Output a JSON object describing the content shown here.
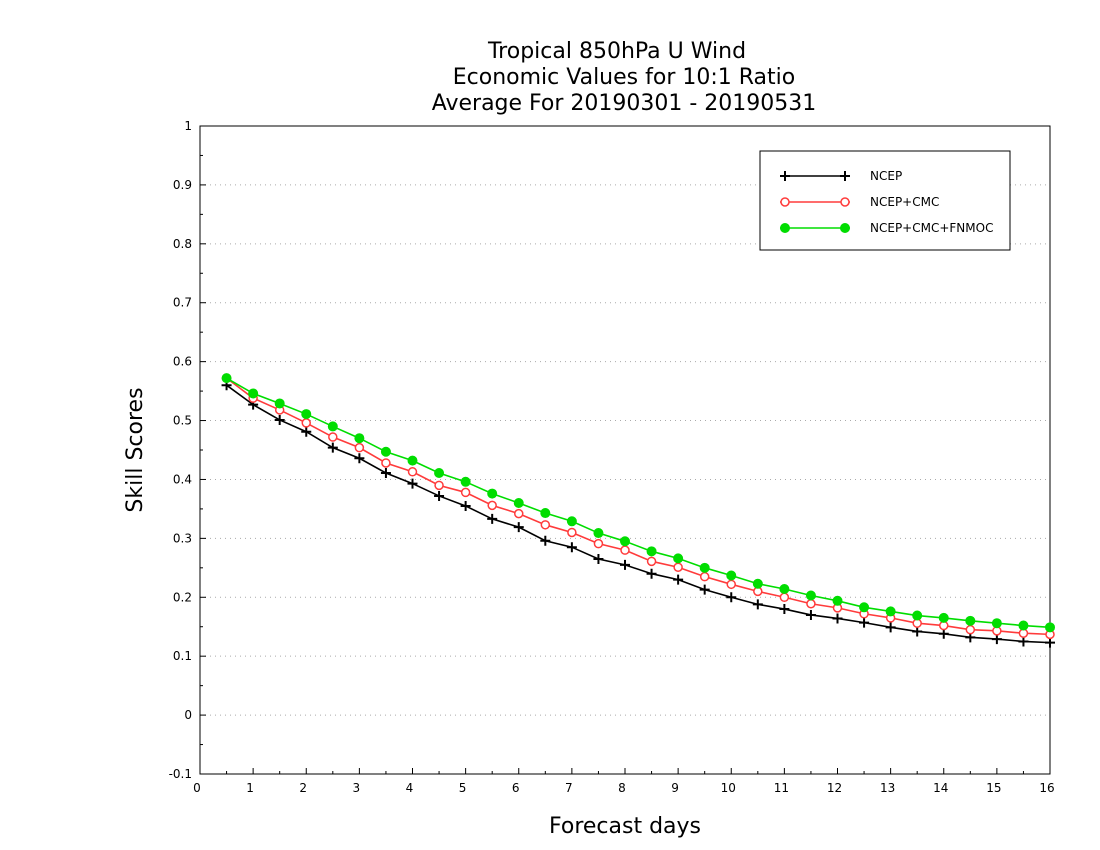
{
  "chart_data": {
    "type": "line",
    "title": [
      "Tropical 850hPa U Wind",
      "Economic Values for 10:1 Ratio",
      "Average For 20190301 - 20190531"
    ],
    "xlabel": "Forecast days",
    "ylabel": "Skill Scores",
    "xlim": [
      0,
      16
    ],
    "ylim": [
      -0.1,
      1
    ],
    "xticks": [
      "0",
      "1",
      "2",
      "3",
      "4",
      "5",
      "6",
      "7",
      "8",
      "9",
      "10",
      "11",
      "12",
      "13",
      "14",
      "15",
      "16"
    ],
    "yticks": [
      "-0.1",
      "0",
      "0.1",
      "0.2",
      "0.3",
      "0.4",
      "0.5",
      "0.6",
      "0.7",
      "0.8",
      "0.9",
      "1"
    ],
    "grid": "horizontal-dotted",
    "legend_position": "top-right",
    "x": [
      0.5,
      1,
      1.5,
      2,
      2.5,
      3,
      3.5,
      4,
      4.5,
      5,
      5.5,
      6,
      6.5,
      7,
      7.5,
      8,
      8.5,
      9,
      9.5,
      10,
      10.5,
      11,
      11.5,
      12,
      12.5,
      13,
      13.5,
      14,
      14.5,
      15,
      15.5,
      16
    ],
    "series": [
      {
        "name": "NCEP",
        "color": "#000000",
        "marker": "plus",
        "values": [
          0.56,
          0.527,
          0.501,
          0.481,
          0.454,
          0.436,
          0.411,
          0.393,
          0.372,
          0.355,
          0.333,
          0.319,
          0.296,
          0.285,
          0.265,
          0.255,
          0.24,
          0.23,
          0.213,
          0.2,
          0.188,
          0.18,
          0.17,
          0.164,
          0.157,
          0.149,
          0.142,
          0.138,
          0.132,
          0.129,
          0.125,
          0.123
        ]
      },
      {
        "name": "NCEP+CMC",
        "color": "#ff3b3b",
        "marker": "open-circle",
        "values": [
          0.572,
          0.538,
          0.518,
          0.496,
          0.472,
          0.454,
          0.428,
          0.413,
          0.39,
          0.378,
          0.356,
          0.342,
          0.323,
          0.31,
          0.291,
          0.28,
          0.261,
          0.251,
          0.235,
          0.222,
          0.21,
          0.2,
          0.189,
          0.182,
          0.172,
          0.165,
          0.156,
          0.152,
          0.145,
          0.143,
          0.139,
          0.137
        ]
      },
      {
        "name": "NCEP+CMC+FNMOC",
        "color": "#00dd00",
        "marker": "filled-circle",
        "values": [
          0.572,
          0.546,
          0.529,
          0.511,
          0.49,
          0.47,
          0.447,
          0.432,
          0.411,
          0.396,
          0.376,
          0.36,
          0.343,
          0.329,
          0.309,
          0.295,
          0.278,
          0.266,
          0.25,
          0.237,
          0.223,
          0.214,
          0.203,
          0.194,
          0.183,
          0.176,
          0.169,
          0.165,
          0.16,
          0.156,
          0.152,
          0.149
        ]
      }
    ]
  }
}
